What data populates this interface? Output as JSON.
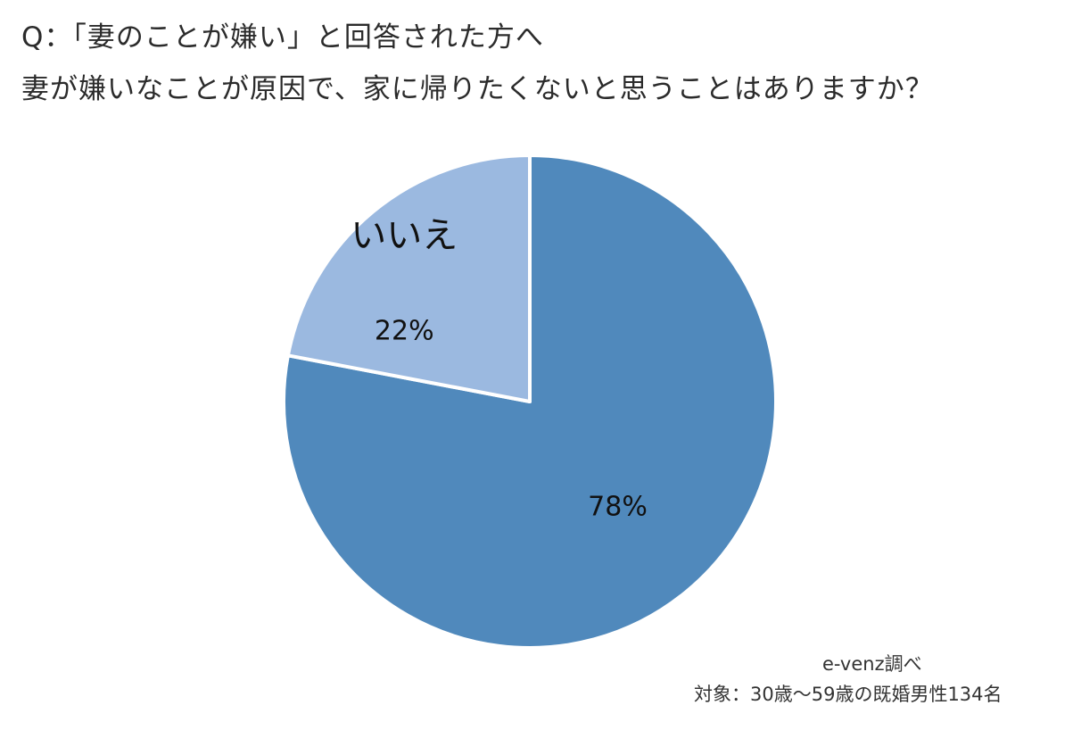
{
  "header": {
    "question_line1": "Q：「妻のことが嫌い」と回答された方へ",
    "question_line2": "妻が嫌いなことが原因で、家に帰りたくないと思うことはありますか？"
  },
  "footer": {
    "source": "e-venz調べ",
    "target": "対象：30歳～59歳の既婚男性134名"
  },
  "chart_data": {
    "type": "pie",
    "title": "妻が嫌いなことが原因で、家に帰りたくないと思うことはありますか？",
    "start_angle": "12 o'clock",
    "direction": "clockwise",
    "slices": [
      {
        "label": "",
        "value": 78,
        "value_label": "78%",
        "color": "#5089bc"
      },
      {
        "label": "いいえ",
        "value": 22,
        "value_label": "22%",
        "color": "#9bb9e0"
      }
    ],
    "separator_color": "#ffffff"
  }
}
